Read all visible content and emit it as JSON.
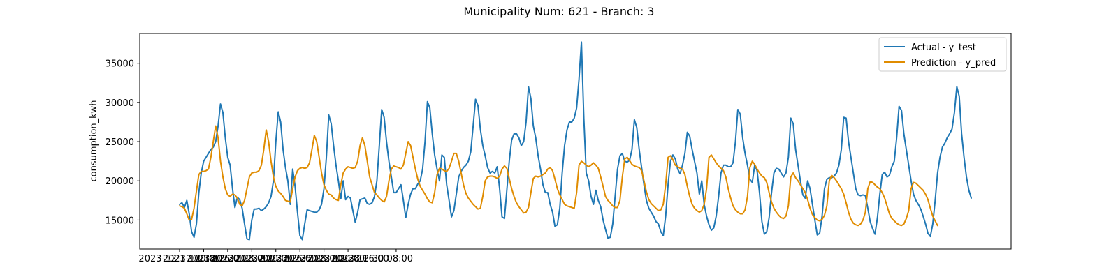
{
  "chart_data": {
    "type": "line",
    "title": "Municipality Num: 621 - Branch: 3",
    "xlabel": "",
    "ylabel": "consumption_kwh",
    "x_start": "2023-12-17 00:00",
    "x_step_hours": 4,
    "x_tick_labels": [
      "2023-12-17 00:00",
      "2023-12-18 16:00",
      "2023-12-20 08:00",
      "2023-12-22 00:00",
      "2023-12-23 16:00",
      "2023-12-25 08:00",
      "2023-12-27 00:00",
      "2023-12-28 16:00",
      "2023-12-30 08:00",
      ""
    ],
    "y_ticks": [
      15000,
      20000,
      25000,
      30000,
      35000
    ],
    "ylim": [
      11300,
      38800
    ],
    "grid": false,
    "legend_position": "top-right",
    "series": [
      {
        "name": "Actual - y_test",
        "color": "#1f77b4",
        "values": [
          17000,
          17200,
          16600,
          17500,
          15800,
          13500,
          12800,
          14500,
          18500,
          21000,
          22500,
          23000,
          23500,
          24000,
          24300,
          25000,
          27000,
          29800,
          28700,
          25500,
          23000,
          22000,
          19000,
          16600,
          17900,
          17600,
          16500,
          14500,
          12600,
          12500,
          15000,
          16400,
          16400,
          16500,
          16200,
          16400,
          16700,
          17200,
          18000,
          20000,
          25000,
          28800,
          27500,
          24000,
          21700,
          20000,
          17000,
          21500,
          19300,
          16000,
          13000,
          12500,
          14500,
          16300,
          16200,
          16100,
          16000,
          16000,
          16300,
          17000,
          19000,
          23000,
          28400,
          27300,
          24500,
          22000,
          20000,
          17700,
          20000,
          17600,
          18000,
          17800,
          16200,
          14700,
          16000,
          17600,
          17700,
          17800,
          17100,
          17000,
          17200,
          18000,
          20000,
          24500,
          29100,
          28100,
          25000,
          22500,
          20500,
          18500,
          18500,
          19000,
          19500,
          17500,
          15300,
          17000,
          18300,
          19000,
          19000,
          19600,
          20000,
          21500,
          25000,
          30100,
          29300,
          26000,
          23300,
          21500,
          20000,
          23300,
          23000,
          19500,
          17500,
          15400,
          16200,
          18300,
          20500,
          21200,
          21700,
          22000,
          22500,
          23700,
          27000,
          30400,
          29600,
          26600,
          24500,
          23200,
          21700,
          21000,
          21200,
          21000,
          21800,
          19000,
          15400,
          15200,
          18800,
          22500,
          25200,
          26000,
          26000,
          25500,
          24500,
          25000,
          27500,
          32000,
          30500,
          27000,
          25500,
          23200,
          21500,
          19500,
          18500,
          18500,
          17000,
          16000,
          14200,
          14400,
          16500,
          21000,
          24500,
          26500,
          27500,
          27500,
          28000,
          29300,
          33000,
          37700,
          28000,
          21000,
          20000,
          18000,
          17000,
          18800,
          17500,
          16700,
          15000,
          13800,
          12700,
          12800,
          14500,
          18000,
          21500,
          23200,
          23500,
          22500,
          22400,
          22600,
          24000,
          27800,
          26800,
          24000,
          21700,
          19500,
          17500,
          16500,
          16000,
          15500,
          14800,
          14500,
          13500,
          13000,
          15500,
          19500,
          22500,
          23300,
          22800,
          21500,
          20900,
          22000,
          23500,
          26200,
          25700,
          24000,
          22500,
          21000,
          18300,
          20000,
          17000,
          15500,
          14400,
          13700,
          14000,
          15500,
          18000,
          21000,
          22000,
          22000,
          21800,
          21800,
          22300,
          25000,
          29100,
          28500,
          25500,
          23500,
          22000,
          20200,
          19800,
          22000,
          21300,
          18500,
          14800,
          13200,
          13500,
          15300,
          18500,
          21000,
          21600,
          21500,
          21000,
          20500,
          21000,
          23000,
          28000,
          27300,
          24000,
          22000,
          20000,
          18200,
          17800,
          20000,
          19000,
          17000,
          15000,
          13100,
          13300,
          15500,
          19000,
          20200,
          20400,
          20400,
          20600,
          21000,
          22000,
          24000,
          28100,
          28000,
          25000,
          23000,
          21000,
          19000,
          18200,
          18100,
          18200,
          18100,
          16500,
          14800,
          13900,
          13200,
          15300,
          18300,
          20800,
          21100,
          20500,
          20700,
          21800,
          22500,
          25500,
          29500,
          29000,
          26000,
          24000,
          22000,
          20000,
          18300,
          17500,
          17000,
          16400,
          15500,
          14500,
          13300,
          12900,
          14500,
          17500,
          21000,
          23000,
          24300,
          24800,
          25500,
          26000,
          26600,
          28700,
          32000,
          30800,
          26000,
          23000,
          20500,
          18800,
          17800
        ]
      },
      {
        "name": "Prediction - y_pred",
        "color": "#e08c00",
        "values": [
          16800,
          16700,
          16500,
          15800,
          15000,
          15100,
          16500,
          18700,
          20800,
          21200,
          21200,
          21300,
          21500,
          23000,
          25000,
          27000,
          25500,
          22500,
          20500,
          19000,
          18200,
          18000,
          18300,
          18200,
          17800,
          17000,
          16800,
          17500,
          19000,
          20500,
          21000,
          21100,
          21100,
          21300,
          22000,
          24000,
          26500,
          25000,
          22500,
          20500,
          19300,
          18700,
          18400,
          18000,
          17500,
          17400,
          17300,
          19000,
          20500,
          21300,
          21600,
          21700,
          21600,
          21700,
          22300,
          24000,
          25800,
          25000,
          23000,
          21000,
          19500,
          18800,
          18300,
          18200,
          17800,
          17600,
          17500,
          19500,
          21000,
          21500,
          21800,
          21700,
          21600,
          21700,
          22500,
          24500,
          25500,
          24500,
          22500,
          20500,
          19500,
          18500,
          18200,
          17800,
          17500,
          17300,
          18000,
          20000,
          21500,
          21900,
          21800,
          21700,
          21500,
          22000,
          23500,
          25000,
          24500,
          23000,
          21500,
          20200,
          19300,
          18800,
          18300,
          17700,
          17300,
          17200,
          18500,
          20800,
          21600,
          21500,
          21300,
          21200,
          21600,
          22500,
          23500,
          23500,
          22500,
          21000,
          19500,
          18400,
          17800,
          17400,
          17000,
          16700,
          16400,
          16500,
          18000,
          20000,
          20500,
          20600,
          20600,
          20500,
          20300,
          20600,
          21500,
          21900,
          21600,
          20300,
          19000,
          18000,
          17200,
          16700,
          16300,
          15900,
          16000,
          16600,
          18500,
          20300,
          20600,
          20500,
          20600,
          20800,
          21000,
          21500,
          21700,
          21300,
          20200,
          19000,
          18200,
          17600,
          17000,
          16800,
          16700,
          16600,
          16500,
          18500,
          22000,
          22500,
          22300,
          22000,
          21800,
          22000,
          22300,
          22000,
          21600,
          20500,
          19300,
          18000,
          17500,
          17200,
          16800,
          16600,
          16600,
          17500,
          20500,
          22800,
          23000,
          22600,
          22100,
          21900,
          21800,
          21700,
          21300,
          20000,
          18600,
          17600,
          17100,
          16800,
          16500,
          16200,
          16300,
          17000,
          19500,
          23000,
          23200,
          22700,
          22000,
          21800,
          21600,
          21500,
          20800,
          19300,
          18000,
          17000,
          16500,
          16200,
          16000,
          16200,
          17000,
          19000,
          23000,
          23300,
          22800,
          22300,
          21900,
          21600,
          21300,
          20500,
          19000,
          17800,
          16800,
          16300,
          16000,
          15800,
          15800,
          16300,
          18000,
          21700,
          22500,
          22100,
          21500,
          21000,
          20600,
          20400,
          19800,
          18500,
          17300,
          16500,
          16000,
          15600,
          15300,
          15200,
          15500,
          16800,
          20500,
          21000,
          20400,
          20000,
          19500,
          19000,
          18500,
          17600,
          16500,
          15700,
          15300,
          15000,
          14900,
          15100,
          15600,
          16800,
          20000,
          20700,
          20400,
          20000,
          19500,
          19000,
          18300,
          17200,
          16000,
          15100,
          14600,
          14400,
          14300,
          14500,
          15000,
          16000,
          19000,
          19900,
          19800,
          19500,
          19200,
          19000,
          18500,
          17800,
          16800,
          15800,
          15200,
          14900,
          14600,
          14400,
          14300,
          14500,
          15200,
          16200,
          19000,
          19800,
          19700,
          19400,
          19100,
          18800,
          18300,
          17600,
          16500,
          15500,
          14900,
          14300
        ]
      }
    ]
  }
}
